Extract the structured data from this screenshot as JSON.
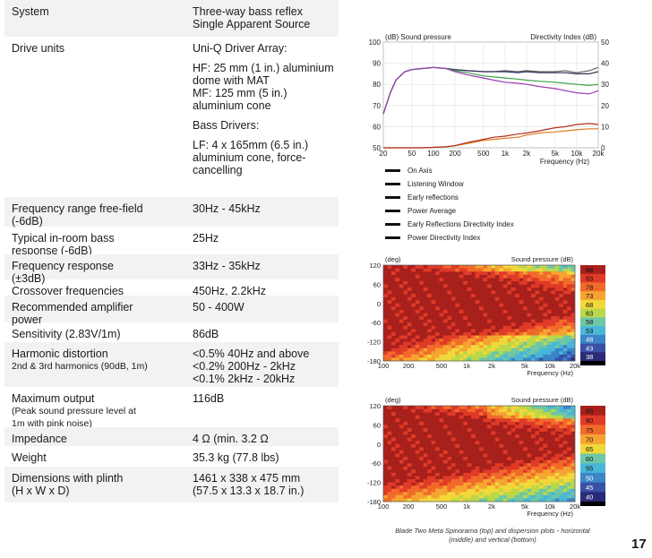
{
  "specs": [
    {
      "label": [
        "System"
      ],
      "value": [
        "Three-way bass reflex",
        "Single Apparent Source"
      ]
    },
    {
      "label": [
        "Drive units"
      ],
      "value": [
        "Uni-Q Driver Array:",
        "",
        "HF: 25 mm (1 in.) aluminium",
        "dome with MAT",
        "MF: 125 mm (5 in.)",
        "aluminium cone",
        "",
        "Bass Drivers:",
        "",
        "LF: 4 x 165mm (6.5 in.)",
        "aluminium cone, force-",
        "cancelling"
      ]
    },
    {
      "label": [
        "Frequency range free-field",
        "(-6dB)"
      ],
      "value": [
        "30Hz - 45kHz"
      ]
    },
    {
      "label": [
        "Typical in-room bass",
        "response (-6dB)"
      ],
      "value": [
        "25Hz"
      ]
    },
    {
      "label": [
        "Frequency response",
        "(±3dB)"
      ],
      "value": [
        "33Hz - 35kHz"
      ]
    },
    {
      "label": [
        "Crossover frequencies"
      ],
      "value": [
        "450Hz, 2.2kHz"
      ]
    },
    {
      "label": [
        "Recommended amplifier",
        "power"
      ],
      "value": [
        "50 - 400W"
      ]
    },
    {
      "label": [
        "Sensitivity (2.83V/1m)"
      ],
      "value": [
        "86dB"
      ]
    },
    {
      "label": [
        "Harmonic distortion",
        "2nd & 3rd harmonics (90dB, 1m)"
      ],
      "value": [
        "<0.5% 40Hz and above",
        "<0.2% 200Hz - 2kHz",
        "<0.1% 2kHz - 20kHz"
      ]
    },
    {
      "label": [
        "Maximum output",
        "(Peak sound pressure level at",
        "1m with pink noise)"
      ],
      "value": [
        "116dB"
      ]
    },
    {
      "label": [
        "Impedance"
      ],
      "value": [
        "4 Ω (min. 3.2 Ω"
      ]
    },
    {
      "label": [
        "Weight"
      ],
      "value": [
        "35.3 kg (77.8 lbs)"
      ]
    },
    {
      "label": [
        "Dimensions with plinth",
        "(H x W x D)"
      ],
      "value": [
        "1461 x 338 x 475 mm",
        "(57.5 x 13.3 x 18.7 in.)"
      ]
    }
  ],
  "chart_data": [
    {
      "type": "line",
      "title_left": "(dB) Sound pressure",
      "title_right": "Directivity Index (dB)",
      "xlabel": "Frequency (Hz)",
      "x_ticks": [
        "20",
        "50",
        "100",
        "200",
        "500",
        "1k",
        "2k",
        "5k",
        "10k",
        "20k"
      ],
      "y_left_ticks": [
        "50",
        "60",
        "70",
        "80",
        "90",
        "100"
      ],
      "y_right_ticks": [
        "0",
        "10",
        "20",
        "30",
        "40",
        "50"
      ],
      "ylim_left": [
        50,
        100
      ],
      "ylim_right": [
        0,
        50
      ],
      "x_scale": "log",
      "x": [
        20,
        25,
        30,
        40,
        50,
        70,
        100,
        150,
        200,
        300,
        500,
        700,
        1000,
        1500,
        2000,
        3000,
        5000,
        7000,
        10000,
        15000,
        20000
      ],
      "series": [
        {
          "name": "On Axis",
          "color": "#6b6b6b",
          "axis": "left",
          "values": [
            66,
            76,
            82,
            86,
            87,
            87.5,
            88,
            87.5,
            87,
            86.5,
            86,
            86,
            86.5,
            86,
            86.5,
            86,
            86,
            86.5,
            85.5,
            86.5,
            88
          ]
        },
        {
          "name": "Listening Window",
          "color": "#2f2f5a",
          "axis": "left",
          "values": [
            66,
            76,
            82,
            86,
            87,
            87.5,
            88,
            87.5,
            87,
            86.5,
            86,
            86,
            86,
            85.5,
            86,
            85.5,
            85.5,
            85.5,
            85,
            85,
            86
          ]
        },
        {
          "name": "Early reflections",
          "color": "#3aa048",
          "axis": "left",
          "values": [
            66,
            76,
            82,
            86,
            87,
            87.5,
            88,
            87.5,
            86.5,
            85.5,
            84,
            83.5,
            83,
            82.5,
            82,
            81.5,
            81,
            80.5,
            80,
            79.5,
            80
          ]
        },
        {
          "name": "Power Average",
          "color": "#9a3ab0",
          "axis": "left",
          "values": [
            66,
            76,
            82,
            86,
            87,
            87.5,
            88,
            87.5,
            86,
            84.5,
            83,
            82,
            81,
            80.5,
            80,
            79,
            78,
            77,
            76,
            75.5,
            77
          ]
        },
        {
          "name": "Early Reflections Directivity Index",
          "color": "#e07b1e",
          "axis": "right",
          "values": [
            0,
            0,
            0,
            0,
            0,
            0,
            0.2,
            0.5,
            1,
            2,
            3.5,
            4,
            4.5,
            5,
            6,
            7,
            7.5,
            8,
            8.5,
            9,
            9
          ]
        },
        {
          "name": "Power Directivity Index",
          "color": "#b03020",
          "axis": "right",
          "values": [
            0,
            0,
            0,
            0,
            0,
            0,
            0.2,
            0.5,
            1,
            2.5,
            4,
            5,
            5.5,
            6.5,
            7,
            8,
            9.5,
            10,
            11,
            11.5,
            11
          ]
        }
      ]
    },
    {
      "type": "heatmap",
      "name": "horizontal",
      "title_left": "(deg)",
      "title_right": "Sound pressure (dB)",
      "xlabel": "Frequency (Hz)",
      "x_ticks": [
        "100",
        "200",
        "500",
        "1k",
        "2k",
        "5k",
        "10k",
        "20k"
      ],
      "y_ticks": [
        "120",
        "60",
        "0",
        "-60",
        "-120",
        "-180"
      ],
      "colorbar": [
        "88",
        "83",
        "78",
        "73",
        "68",
        "63",
        "58",
        "53",
        "48",
        "43",
        "38"
      ]
    },
    {
      "type": "heatmap",
      "name": "vertical",
      "title_left": "(deg)",
      "title_right": "Sound pressure (dB)",
      "xlabel": "Frequency (Hz)",
      "x_ticks": [
        "100",
        "200",
        "500",
        "1k",
        "2k",
        "5k",
        "10k",
        "20k"
      ],
      "y_ticks": [
        "120",
        "60",
        "0",
        "-60",
        "-120",
        "-180"
      ],
      "colorbar": [
        "85",
        "80",
        "75",
        "70",
        "65",
        "60",
        "55",
        "50",
        "45",
        "40"
      ]
    }
  ],
  "colorscale": [
    "#a8201c",
    "#e03a28",
    "#f26a2a",
    "#f5a431",
    "#f2d83a",
    "#b9d84a",
    "#6ec7a6",
    "#49b7d8",
    "#3a86c8",
    "#3950a6",
    "#2a2a78"
  ],
  "caption": [
    "Blade Two Meta Spinorama (top) and dispersion plots - horizontal",
    "(middle) and vertical (bottom)"
  ],
  "page_number": "17"
}
